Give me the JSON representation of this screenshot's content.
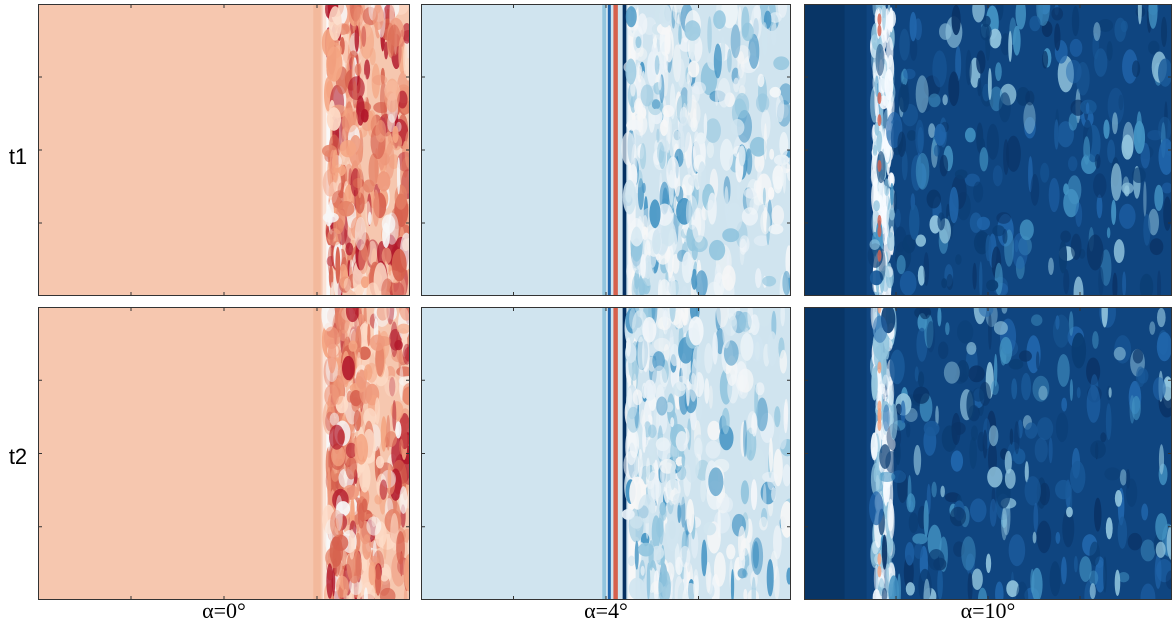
{
  "row_labels": [
    "t1",
    "t2"
  ],
  "column_labels": [
    "α=0°",
    "α=4°",
    "α=10°"
  ]
}
